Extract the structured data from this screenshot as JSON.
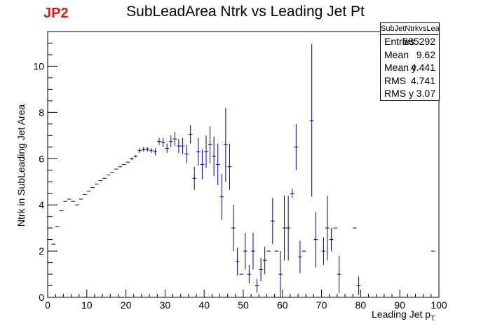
{
  "tag": "JP2",
  "chart_data": {
    "type": "scatter",
    "title": "SubLeadArea Ntrk vs Leading Jet Pt",
    "xlabel": "Leading Jet p",
    "xlabel_sub": "T",
    "ylabel": "Ntrk in SubLeading Jet Area",
    "xlim": [
      0,
      100
    ],
    "ylim": [
      0,
      11.5
    ],
    "xticks": [
      0,
      10,
      20,
      30,
      40,
      50,
      60,
      70,
      80,
      90,
      100
    ],
    "yticks": [
      0,
      2,
      4,
      6,
      8,
      10
    ],
    "grid": false,
    "legend": "top-right",
    "marker_color": "#000080",
    "bin_width": 1,
    "points": [
      {
        "x": 1.5,
        "y": 2.3,
        "e": 0
      },
      {
        "x": 2.5,
        "y": 3.05,
        "e": 0
      },
      {
        "x": 3.5,
        "y": 3.75,
        "e": 0
      },
      {
        "x": 4.5,
        "y": 4.15,
        "e": 0
      },
      {
        "x": 5.5,
        "y": 4.25,
        "e": 0
      },
      {
        "x": 6.5,
        "y": 4.15,
        "e": 0
      },
      {
        "x": 7.5,
        "y": 4.0,
        "e": 0
      },
      {
        "x": 8.5,
        "y": 4.25,
        "e": 0
      },
      {
        "x": 9.5,
        "y": 4.45,
        "e": 0
      },
      {
        "x": 10.5,
        "y": 4.6,
        "e": 0
      },
      {
        "x": 11.5,
        "y": 4.75,
        "e": 0
      },
      {
        "x": 12.5,
        "y": 4.9,
        "e": 0
      },
      {
        "x": 13.5,
        "y": 5.05,
        "e": 0
      },
      {
        "x": 14.5,
        "y": 5.15,
        "e": 0
      },
      {
        "x": 15.5,
        "y": 5.3,
        "e": 0
      },
      {
        "x": 16.5,
        "y": 5.4,
        "e": 0
      },
      {
        "x": 17.5,
        "y": 5.55,
        "e": 0
      },
      {
        "x": 18.5,
        "y": 5.65,
        "e": 0
      },
      {
        "x": 19.5,
        "y": 5.75,
        "e": 0
      },
      {
        "x": 20.5,
        "y": 5.85,
        "e": 0
      },
      {
        "x": 21.5,
        "y": 6.0,
        "e": 0.05
      },
      {
        "x": 22.5,
        "y": 6.1,
        "e": 0.05
      },
      {
        "x": 23.5,
        "y": 6.35,
        "e": 0.1
      },
      {
        "x": 24.5,
        "y": 6.4,
        "e": 0.1
      },
      {
        "x": 25.5,
        "y": 6.4,
        "e": 0.1
      },
      {
        "x": 26.5,
        "y": 6.35,
        "e": 0.1
      },
      {
        "x": 27.5,
        "y": 6.3,
        "e": 0.15
      },
      {
        "x": 28.5,
        "y": 6.75,
        "e": 0.15
      },
      {
        "x": 29.5,
        "y": 6.7,
        "e": 0.2
      },
      {
        "x": 30.5,
        "y": 6.45,
        "e": 0.2
      },
      {
        "x": 31.5,
        "y": 6.75,
        "e": 0.25
      },
      {
        "x": 32.5,
        "y": 6.85,
        "e": 0.3
      },
      {
        "x": 33.5,
        "y": 6.55,
        "e": 0.3
      },
      {
        "x": 34.5,
        "y": 6.55,
        "e": 0.35
      },
      {
        "x": 35.5,
        "y": 6.2,
        "e": 0.4
      },
      {
        "x": 36.5,
        "y": 7.05,
        "e": 0.4
      },
      {
        "x": 37.5,
        "y": 5.15,
        "e": 0.5
      },
      {
        "x": 38.5,
        "y": 6.3,
        "e": 0.6
      },
      {
        "x": 39.5,
        "y": 5.75,
        "e": 0.65
      },
      {
        "x": 40.5,
        "y": 6.3,
        "e": 0.7
      },
      {
        "x": 41.5,
        "y": 6.6,
        "e": 0.8
      },
      {
        "x": 42.5,
        "y": 6.1,
        "e": 0.85
      },
      {
        "x": 43.5,
        "y": 5.75,
        "e": 0.9
      },
      {
        "x": 44.5,
        "y": 4.35,
        "e": 1.0
      },
      {
        "x": 45.5,
        "y": 6.6,
        "e": 1.6
      },
      {
        "x": 46.5,
        "y": 5.65,
        "e": 1.0
      },
      {
        "x": 47.5,
        "y": 3.0,
        "e": 1.0
      },
      {
        "x": 48.5,
        "y": 1.55,
        "e": 0.6
      },
      {
        "x": 49.5,
        "y": 1.0,
        "e": 0
      },
      {
        "x": 50.5,
        "y": 2.0,
        "e": 0.8
      },
      {
        "x": 51.5,
        "y": 1.0,
        "e": 0.4
      },
      {
        "x": 52.5,
        "y": 2.0,
        "e": 0.8
      },
      {
        "x": 53.5,
        "y": 0.5,
        "e": 0.3
      },
      {
        "x": 54.5,
        "y": 1.2,
        "e": 0.5
      },
      {
        "x": 55.5,
        "y": 1.6,
        "e": 0.6
      },
      {
        "x": 56.5,
        "y": 2.0,
        "e": 0
      },
      {
        "x": 57.5,
        "y": 3.3,
        "e": 1.0
      },
      {
        "x": 58.5,
        "y": 2.0,
        "e": 0
      },
      {
        "x": 59.5,
        "y": 1.0,
        "e": 1.0
      },
      {
        "x": 60.5,
        "y": 3.0,
        "e": 1.4
      },
      {
        "x": 61.5,
        "y": 3.0,
        "e": 1.4
      },
      {
        "x": 62.5,
        "y": 4.5,
        "e": 0.2
      },
      {
        "x": 63.5,
        "y": 6.5,
        "e": 1.0
      },
      {
        "x": 64.5,
        "y": 1.75,
        "e": 0.7
      },
      {
        "x": 65.5,
        "y": 2.0,
        "e": 0
      },
      {
        "x": 67.5,
        "y": 7.65,
        "e": 3.3
      },
      {
        "x": 68.5,
        "y": 2.5,
        "e": 1.2
      },
      {
        "x": 70.5,
        "y": 2.0,
        "e": 0.6
      },
      {
        "x": 71.5,
        "y": 3.0,
        "e": 1.4
      },
      {
        "x": 72.5,
        "y": 2.5,
        "e": 0.5
      },
      {
        "x": 73.5,
        "y": 3.0,
        "e": 0
      },
      {
        "x": 74.5,
        "y": 1.0,
        "e": 0.8
      },
      {
        "x": 78.5,
        "y": 3.0,
        "e": 0
      },
      {
        "x": 79.5,
        "y": 0.5,
        "e": 0.4
      },
      {
        "x": 98.5,
        "y": 2.0,
        "e": 0
      }
    ],
    "stats": {
      "name": "SubJetNtrkvsLeadJetPt",
      "rows": [
        {
          "label": "Entries",
          "value": "585292"
        },
        {
          "label": "Mean",
          "value": "9.62"
        },
        {
          "label": "Mean y",
          "value": "4.441"
        },
        {
          "label": "RMS",
          "value": "4.741"
        },
        {
          "label": "RMS y",
          "value": "3.07"
        }
      ]
    }
  }
}
